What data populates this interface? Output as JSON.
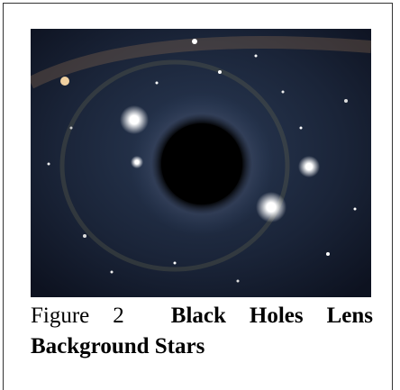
{
  "figure": {
    "label": "Figure 2",
    "caption": "Black Holes Lens Background Stars"
  }
}
